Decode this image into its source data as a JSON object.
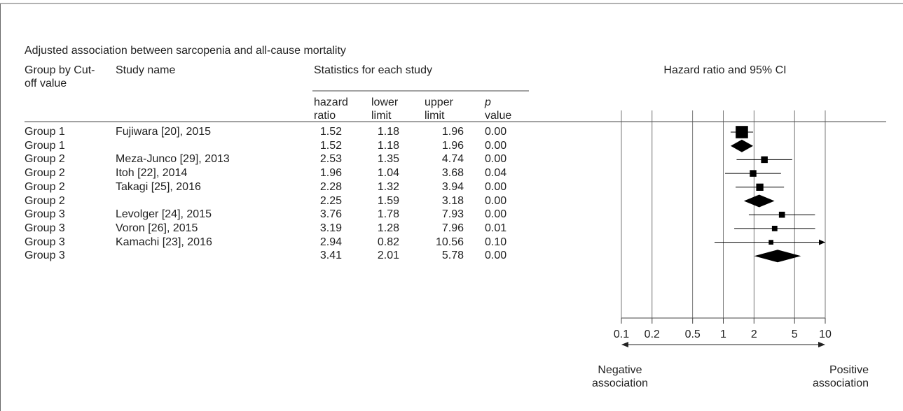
{
  "chart_data": {
    "type": "forest",
    "title": "Adjusted association between sarcopenia and all-cause mortality",
    "columns": {
      "group": "Group by Cut-off value",
      "study": "Study name",
      "stats": "Statistics for each study",
      "hr": "hazard ratio",
      "lower": "lower limit",
      "upper": "upper limit",
      "p_symbol": "p",
      "p_word": "value"
    },
    "axis_title": "Hazard ratio and 95% CI",
    "xscale": "log",
    "xlim": [
      0.1,
      10
    ],
    "xticks": [
      0.1,
      0.2,
      0.5,
      1,
      2,
      5,
      10
    ],
    "grid": true,
    "left_label": "Negative association",
    "right_label": "Positive association",
    "color": "#000000",
    "rows": [
      {
        "group": "Group 1",
        "study": "Fujiwara [20], 2015",
        "hr": 1.52,
        "lower": 1.18,
        "upper": 1.96,
        "p": "0.00"
      },
      {
        "group": "Group 1",
        "study": null,
        "hr": 1.52,
        "lower": 1.18,
        "upper": 1.96,
        "p": "0.00"
      },
      {
        "group": "Group 2",
        "study": "Meza-Junco [29], 2013",
        "hr": 2.53,
        "lower": 1.35,
        "upper": 4.74,
        "p": "0.00"
      },
      {
        "group": "Group 2",
        "study": "Itoh [22], 2014",
        "hr": 1.96,
        "lower": 1.04,
        "upper": 3.68,
        "p": "0.04"
      },
      {
        "group": "Group 2",
        "study": "Takagi [25], 2016",
        "hr": 2.28,
        "lower": 1.32,
        "upper": 3.94,
        "p": "0.00"
      },
      {
        "group": "Group 2",
        "study": null,
        "hr": 2.25,
        "lower": 1.59,
        "upper": 3.18,
        "p": "0.00"
      },
      {
        "group": "Group 3",
        "study": "Levolger [24], 2015",
        "hr": 3.76,
        "lower": 1.78,
        "upper": 7.93,
        "p": "0.00"
      },
      {
        "group": "Group 3",
        "study": "Voron [26], 2015",
        "hr": 3.19,
        "lower": 1.28,
        "upper": 7.96,
        "p": "0.01"
      },
      {
        "group": "Group 3",
        "study": "Kamachi [23], 2016",
        "hr": 2.94,
        "lower": 0.82,
        "upper": 10.56,
        "p": "0.10"
      },
      {
        "group": "Group 3",
        "study": null,
        "hr": 3.41,
        "lower": 2.01,
        "upper": 5.78,
        "p": "0.00"
      }
    ]
  }
}
